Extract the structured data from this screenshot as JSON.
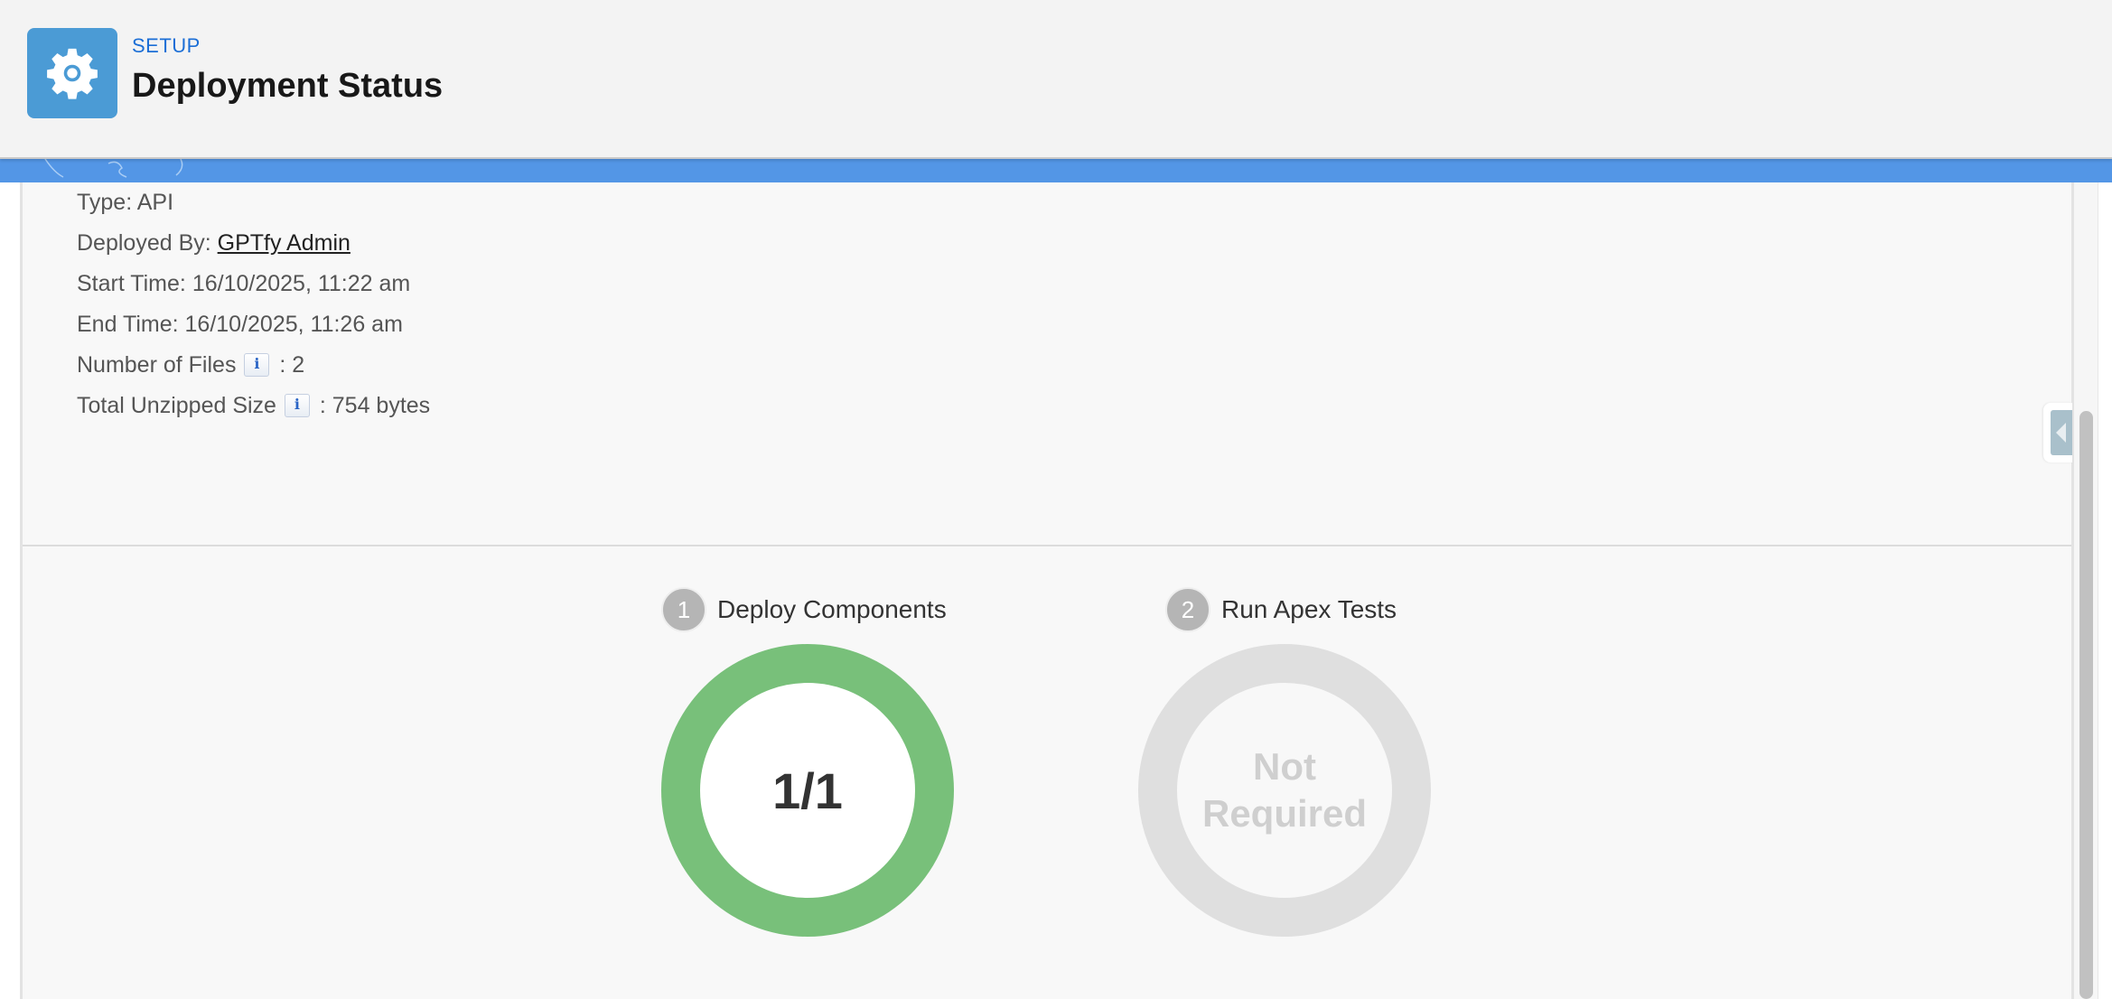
{
  "header": {
    "eyebrow": "SETUP",
    "title": "Deployment Status",
    "icon": "gear-icon",
    "icon_color": "#4b9bd5"
  },
  "details": {
    "type_label": "Type:",
    "type_value": "API",
    "deployed_by_label": "Deployed By:",
    "deployed_by_value": "GPTfy Admin",
    "start_time_label": "Start Time:",
    "start_time_value": "16/10/2025, 11:22 am",
    "end_time_label": "End Time:",
    "end_time_value": "16/10/2025, 11:26 am",
    "files_label": "Number of Files",
    "files_value": ": 2",
    "size_label": "Total Unzipped Size",
    "size_value": ": 754 bytes",
    "info_icon_glyph": "i"
  },
  "steps": [
    {
      "number": "1",
      "label": "Deploy Components",
      "status": "1/1",
      "progress": 1.0,
      "color": "#78c07a"
    },
    {
      "number": "2",
      "label": "Run Apex Tests",
      "status_line1": "Not",
      "status_line2": "Required",
      "color": "#dfdfdf"
    }
  ]
}
